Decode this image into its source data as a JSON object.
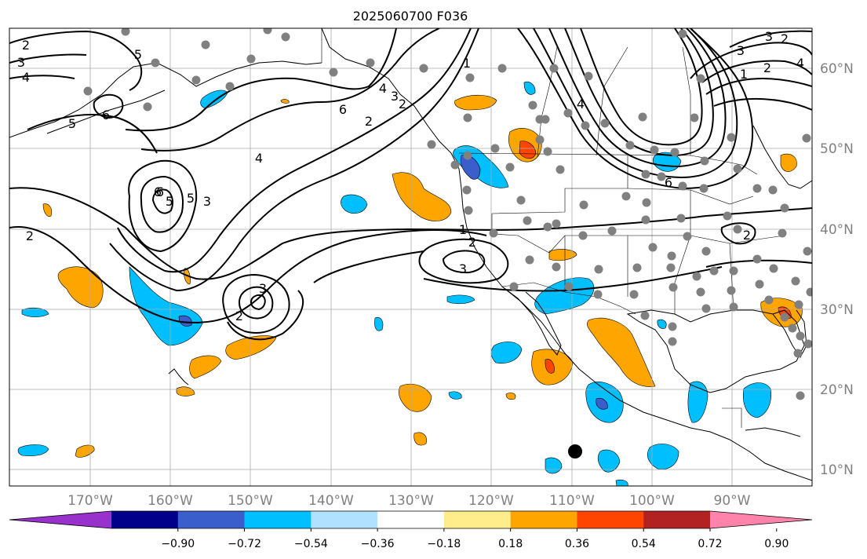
{
  "title": "2025060700 F036",
  "map": {
    "lon_range": [
      -180,
      -80
    ],
    "lat_range": [
      8,
      65
    ],
    "grid": true,
    "lon_labels": [
      "170°W",
      "160°W",
      "150°W",
      "140°W",
      "130°W",
      "120°W",
      "110°W",
      "100°W",
      "90°W"
    ],
    "lat_labels": [
      "60°N",
      "50°N",
      "40°N",
      "30°N",
      "20°N",
      "10°N"
    ],
    "station_marker_color": "#808080",
    "highlight_marker_color": "#000000"
  },
  "contours": {
    "color": "#000000",
    "labels": [
      "2",
      "3",
      "4",
      "5",
      "6",
      "5",
      "6",
      "4",
      "6",
      "2",
      "4",
      "3",
      "2",
      "5",
      "6",
      "5",
      "3",
      "2",
      "3",
      "2",
      "1",
      "2",
      "3",
      "4",
      "3",
      "2",
      "1",
      "2",
      "3",
      "4",
      "6",
      "2",
      "1"
    ]
  },
  "colorbar": {
    "colors": [
      "#9932cc",
      "#00008b",
      "#3a5fcd",
      "#00bfff",
      "#b0e2ff",
      "#ffffff",
      "#ffec8b",
      "#ffa500",
      "#ff4500",
      "#b22222",
      "#ff83aa"
    ],
    "tick_labels": [
      "−0.90",
      "−0.72",
      "−0.54",
      "−0.36",
      "−0.18",
      "0.18",
      "0.36",
      "0.54",
      "0.72",
      "0.90"
    ],
    "extend": "both"
  }
}
